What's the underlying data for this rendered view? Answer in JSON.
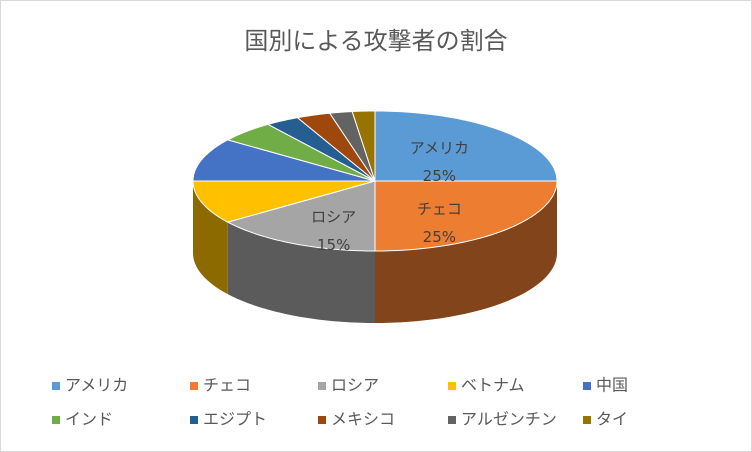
{
  "chart_data": {
    "type": "pie3d",
    "title": "国別による攻撃者の割合",
    "categories": [
      "アメリカ",
      "チェコ",
      "ロシア",
      "ベトナム",
      "中国",
      "インド",
      "エジプト",
      "メキシコ",
      "アルゼンチン",
      "タイ"
    ],
    "values": [
      25,
      25,
      15,
      10,
      10,
      5,
      3,
      3,
      2,
      2
    ],
    "value_labels": [
      "25%",
      "25%",
      "15%",
      null,
      null,
      null,
      null,
      null,
      null,
      null
    ],
    "colors": [
      "#5b9bd5",
      "#ed7d31",
      "#a5a5a5",
      "#ffc000",
      "#4472c4",
      "#70ad47",
      "#255e91",
      "#9e480e",
      "#636363",
      "#997300"
    ],
    "legend": "bottom"
  }
}
